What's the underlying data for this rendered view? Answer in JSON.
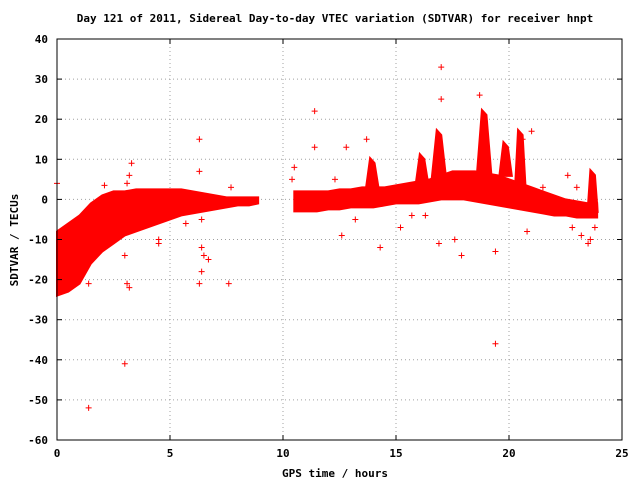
{
  "chart_data": {
    "type": "scatter",
    "title": "Day 121 of 2011, Sidereal Day-to-day VTEC variation (SDTVAR) for receiver hnpt",
    "xlabel": "GPS time / hours",
    "ylabel": "SDTVAR / TECUs",
    "xlim": [
      0,
      25
    ],
    "ylim": [
      -60,
      40
    ],
    "xticks": [
      0,
      5,
      10,
      15,
      20,
      25
    ],
    "yticks": [
      -60,
      -50,
      -40,
      -30,
      -20,
      -10,
      0,
      10,
      20,
      30,
      40
    ],
    "grid": true,
    "marker": "+",
    "series_color": "#ff0000",
    "dense_bands": [
      {
        "x": [
          0.0,
          0.5,
          1.0,
          1.5,
          2.0,
          2.5,
          3.0,
          3.5,
          4.0,
          4.5,
          5.0,
          5.5,
          6.0,
          6.5,
          7.0,
          7.5,
          8.0,
          8.5,
          8.9
        ],
        "lower": [
          -24,
          -23,
          -21,
          -16,
          -13,
          -11,
          -9,
          -8,
          -7,
          -6,
          -5,
          -4,
          -3.5,
          -3,
          -2.5,
          -2,
          -1.5,
          -1.5,
          -1
        ],
        "upper": [
          -8,
          -6,
          -4,
          -1,
          1,
          2,
          2,
          2.5,
          2.5,
          2.5,
          2.5,
          2.5,
          2,
          1.5,
          1,
          0.5,
          0.5,
          0.5,
          0.5
        ]
      },
      {
        "x": [
          10.5,
          11.0,
          11.5,
          12.0,
          12.5,
          13.0,
          13.5,
          14.0,
          14.5,
          15.0,
          15.5,
          16.0,
          16.5,
          17.0,
          17.5,
          18.0,
          18.5,
          19.0,
          19.5,
          20.0,
          20.5,
          21.0,
          21.5,
          22.0,
          22.5,
          23.0,
          23.5,
          23.9
        ],
        "lower": [
          -3,
          -3,
          -3,
          -2.5,
          -2.5,
          -2,
          -2,
          -2,
          -1.5,
          -1,
          -1,
          -1,
          -0.5,
          0,
          0,
          0,
          -0.5,
          -1,
          -1.5,
          -2,
          -2.5,
          -3,
          -3.5,
          -4,
          -4,
          -4.5,
          -4.5,
          -4.5
        ],
        "upper": [
          2,
          2,
          2,
          2,
          2.5,
          2.5,
          3,
          3,
          3,
          3.5,
          4,
          4.5,
          5,
          6,
          7,
          7,
          7,
          6.5,
          6,
          5,
          4,
          3,
          2,
          1,
          0,
          -0.5,
          -1,
          -1
        ]
      }
    ],
    "spikes": [
      {
        "x0": 13.7,
        "x1": 14.2,
        "peak": 10,
        "base": 3
      },
      {
        "x0": 15.9,
        "x1": 16.4,
        "peak": 11,
        "base": 4
      },
      {
        "x0": 16.6,
        "x1": 17.2,
        "peak": 17,
        "base": 5
      },
      {
        "x0": 18.6,
        "x1": 19.2,
        "peak": 22,
        "base": 6
      },
      {
        "x0": 19.6,
        "x1": 20.1,
        "peak": 14,
        "base": 6
      },
      {
        "x0": 20.3,
        "x1": 20.7,
        "peak": 17,
        "base": 4
      },
      {
        "x0": 23.5,
        "x1": 23.9,
        "peak": 7,
        "base": -3
      }
    ],
    "scatter_points": [
      {
        "x": 0.0,
        "y": 4
      },
      {
        "x": 1.4,
        "y": -52
      },
      {
        "x": 1.4,
        "y": -21
      },
      {
        "x": 2.1,
        "y": 3.5
      },
      {
        "x": 3.0,
        "y": -41
      },
      {
        "x": 3.1,
        "y": -21
      },
      {
        "x": 3.2,
        "y": -22
      },
      {
        "x": 3.0,
        "y": -14
      },
      {
        "x": 3.3,
        "y": 9
      },
      {
        "x": 3.2,
        "y": 6
      },
      {
        "x": 3.1,
        "y": 4
      },
      {
        "x": 4.5,
        "y": -11
      },
      {
        "x": 4.5,
        "y": -10
      },
      {
        "x": 5.7,
        "y": -6
      },
      {
        "x": 6.3,
        "y": 15
      },
      {
        "x": 6.3,
        "y": 7
      },
      {
        "x": 6.3,
        "y": -21
      },
      {
        "x": 6.4,
        "y": -18
      },
      {
        "x": 6.4,
        "y": -12
      },
      {
        "x": 6.5,
        "y": -14
      },
      {
        "x": 6.7,
        "y": -15
      },
      {
        "x": 6.4,
        "y": -5
      },
      {
        "x": 7.6,
        "y": -21
      },
      {
        "x": 7.7,
        "y": 3
      },
      {
        "x": 10.5,
        "y": 8
      },
      {
        "x": 10.4,
        "y": 5
      },
      {
        "x": 11.4,
        "y": 22
      },
      {
        "x": 11.4,
        "y": 13
      },
      {
        "x": 12.3,
        "y": 5
      },
      {
        "x": 12.6,
        "y": -9
      },
      {
        "x": 12.8,
        "y": 13
      },
      {
        "x": 13.2,
        "y": -5
      },
      {
        "x": 13.7,
        "y": 15
      },
      {
        "x": 14.3,
        "y": -12
      },
      {
        "x": 15.2,
        "y": -7
      },
      {
        "x": 15.7,
        "y": -4
      },
      {
        "x": 16.3,
        "y": -4
      },
      {
        "x": 16.9,
        "y": -11
      },
      {
        "x": 17.0,
        "y": 33
      },
      {
        "x": 17.0,
        "y": 25
      },
      {
        "x": 17.6,
        "y": -10
      },
      {
        "x": 17.9,
        "y": -14
      },
      {
        "x": 18.7,
        "y": 26
      },
      {
        "x": 19.4,
        "y": -36
      },
      {
        "x": 19.4,
        "y": -13
      },
      {
        "x": 20.8,
        "y": -8
      },
      {
        "x": 21.5,
        "y": 3
      },
      {
        "x": 22.6,
        "y": 6
      },
      {
        "x": 22.8,
        "y": -7
      },
      {
        "x": 23.0,
        "y": 3
      },
      {
        "x": 23.2,
        "y": -9
      },
      {
        "x": 23.5,
        "y": -11
      },
      {
        "x": 23.6,
        "y": -10
      },
      {
        "x": 23.8,
        "y": -7
      },
      {
        "x": 21.0,
        "y": 17
      },
      {
        "x": 20.6,
        "y": 15
      }
    ]
  }
}
